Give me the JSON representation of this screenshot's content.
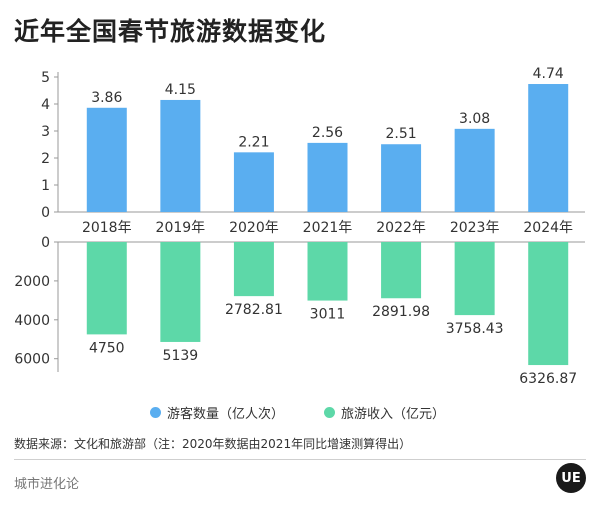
{
  "title": "近年全国春节旅游数据变化",
  "chart_data": [
    {
      "type": "bar",
      "categories": [
        "2018年",
        "2019年",
        "2020年",
        "2021年",
        "2022年",
        "2023年",
        "2024年"
      ],
      "series": [
        {
          "name": "游客数量（亿人次）",
          "values": [
            3.86,
            4.15,
            2.21,
            2.56,
            2.51,
            3.08,
            4.74
          ],
          "color": "#5aaef0"
        }
      ],
      "ylim": [
        0,
        5
      ],
      "yticks": [
        0,
        1,
        2,
        3,
        4,
        5
      ],
      "value_labels": [
        "3.86",
        "4.15",
        "2.21",
        "2.56",
        "2.51",
        "3.08",
        "4.74"
      ]
    },
    {
      "type": "bar",
      "categories": [
        "2018年",
        "2019年",
        "2020年",
        "2021年",
        "2022年",
        "2023年",
        "2024年"
      ],
      "series": [
        {
          "name": "旅游收入（亿元）",
          "values": [
            4750,
            5139,
            2782.81,
            3011,
            2891.98,
            3758.43,
            6326.87
          ],
          "color": "#5dd8a8"
        }
      ],
      "ylim": [
        0,
        6500
      ],
      "yticks": [
        0,
        2000,
        4000,
        6000
      ],
      "inverted": true,
      "value_labels": [
        "4750",
        "5139",
        "2782.81",
        "3011",
        "2891.98",
        "3758.43",
        "6326.87"
      ]
    }
  ],
  "legend": {
    "visitors": "游客数量（亿人次）",
    "revenue": "旅游收入（亿元）"
  },
  "source": "数据来源：文化和旅游部（注：2020年数据由2021年同比增速测算得出）",
  "brand": "城市进化论",
  "logo_text": "UE"
}
